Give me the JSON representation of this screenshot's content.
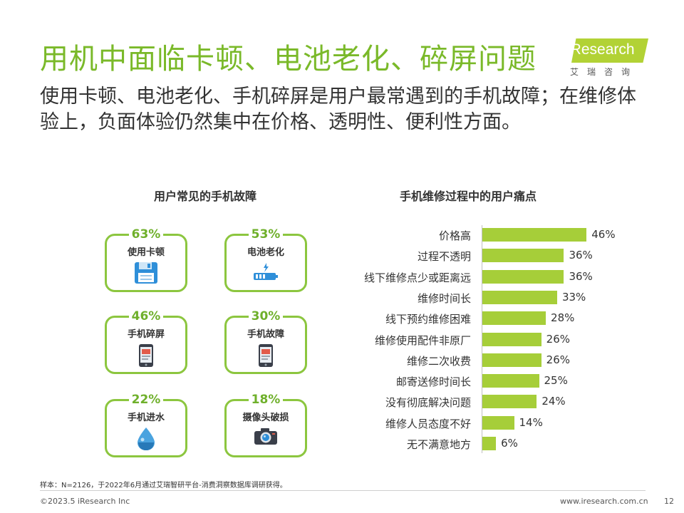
{
  "title": "用机中面临卡顿、电池老化、碎屏问题",
  "logo": {
    "brand": "iResearch",
    "sub": "艾瑞咨询"
  },
  "subtitle": "使用卡顿、电池老化、手机碎屏是用户最常遇到的手机故障；在维修体验上，负面体验仍然集中在价格、透明性、便利性方面。",
  "left_panel": {
    "title": "用户常见的手机故障",
    "cards": [
      {
        "pct": "63%",
        "label": "使用卡顿",
        "icon": "floppy-disk-icon"
      },
      {
        "pct": "53%",
        "label": "电池老化",
        "icon": "battery-icon"
      },
      {
        "pct": "46%",
        "label": "手机碎屏",
        "icon": "broken-phone-icon"
      },
      {
        "pct": "30%",
        "label": "手机故障",
        "icon": "faulty-phone-icon"
      },
      {
        "pct": "22%",
        "label": "手机进水",
        "icon": "water-drop-icon"
      },
      {
        "pct": "18%",
        "label": "摄像头破损",
        "icon": "camera-icon"
      }
    ]
  },
  "chart_data": {
    "type": "bar",
    "orientation": "horizontal",
    "title": "手机维修过程中的用户痛点",
    "categories": [
      "价格高",
      "过程不透明",
      "线下维修点少或距离远",
      "维修时间长",
      "线下预约维修困难",
      "维修使用配件非原厂",
      "维修二次收费",
      "邮寄送修时间长",
      "没有彻底解决问题",
      "维修人员态度不好",
      "无不满意地方"
    ],
    "values": [
      46,
      36,
      36,
      33,
      28,
      26,
      26,
      25,
      24,
      14,
      6
    ],
    "value_labels": [
      "46%",
      "36%",
      "36%",
      "33%",
      "28%",
      "26%",
      "26%",
      "25%",
      "24%",
      "14%",
      "6%"
    ],
    "bar_color": "#a6ce39"
  },
  "footer": {
    "note": "样本：N=2126，于2022年6月通过艾瑞智研平台-消费洞察数据库调研获得。",
    "copyright": "©2023.5 iResearch Inc",
    "url": "www.iresearch.com.cn",
    "page": "12"
  },
  "colors": {
    "accent": "#7ab929",
    "bar": "#a6ce39",
    "card_border": "#8cc63f"
  }
}
